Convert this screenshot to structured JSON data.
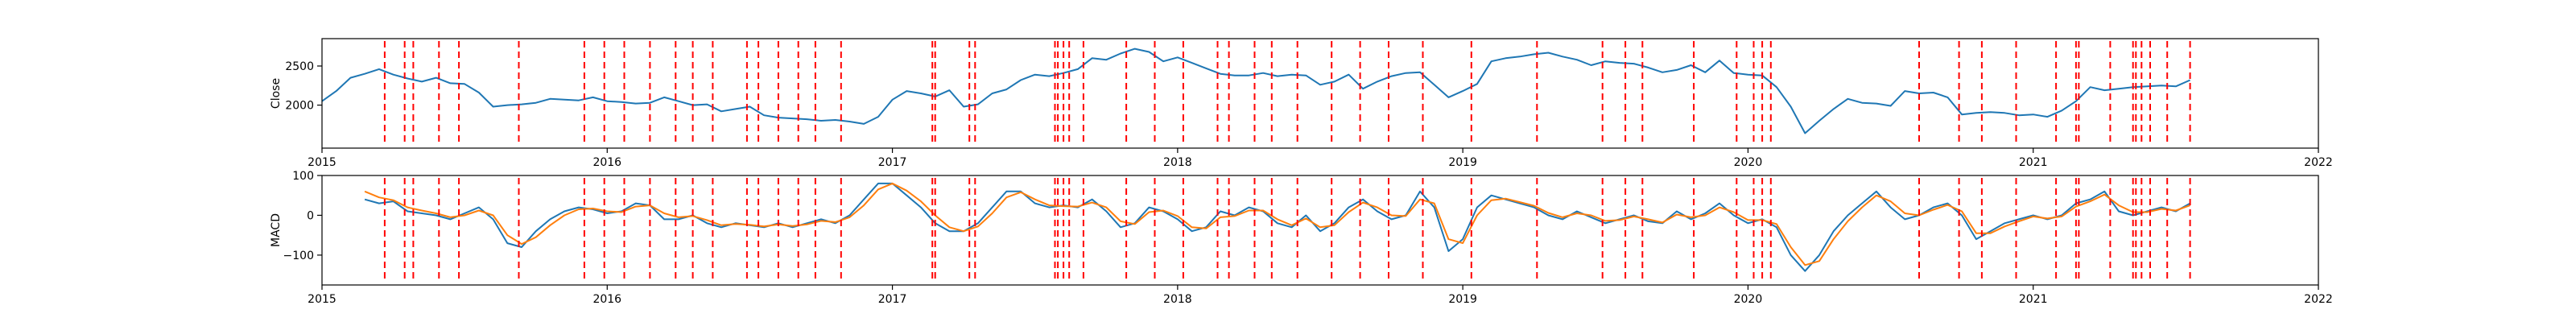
{
  "chart_data": [
    {
      "type": "line",
      "panel": "close",
      "title": "",
      "xlabel": "",
      "ylabel": "Close",
      "xlim": [
        2015.0,
        2022.0
      ],
      "ylim": [
        1450,
        2850
      ],
      "x_ticks": [
        2015,
        2016,
        2017,
        2018,
        2019,
        2020,
        2021,
        2022
      ],
      "x_tick_labels": [
        "2015",
        "2016",
        "2017",
        "2018",
        "2019",
        "2020",
        "2021",
        "2022"
      ],
      "y_ticks": [
        2000,
        2500
      ],
      "y_tick_labels": [
        "2000",
        "2500"
      ],
      "grid": false,
      "series": [
        {
          "color": "#1f77b4",
          "x": [
            2015.0,
            2015.05,
            2015.1,
            2015.15,
            2015.2,
            2015.25,
            2015.3,
            2015.35,
            2015.4,
            2015.45,
            2015.5,
            2015.55,
            2015.6,
            2015.65,
            2015.7,
            2015.75,
            2015.8,
            2015.85,
            2015.9,
            2015.95,
            2016.0,
            2016.05,
            2016.1,
            2016.15,
            2016.2,
            2016.25,
            2016.3,
            2016.35,
            2016.4,
            2016.45,
            2016.5,
            2016.55,
            2016.6,
            2016.65,
            2016.7,
            2016.75,
            2016.8,
            2016.85,
            2016.9,
            2016.95,
            2017.0,
            2017.05,
            2017.1,
            2017.15,
            2017.2,
            2017.25,
            2017.3,
            2017.35,
            2017.4,
            2017.45,
            2017.5,
            2017.55,
            2017.6,
            2017.65,
            2017.7,
            2017.75,
            2017.8,
            2017.85,
            2017.9,
            2017.95,
            2018.0,
            2018.05,
            2018.1,
            2018.15,
            2018.2,
            2018.25,
            2018.3,
            2018.35,
            2018.4,
            2018.45,
            2018.5,
            2018.55,
            2018.6,
            2018.65,
            2018.7,
            2018.75,
            2018.8,
            2018.85,
            2018.9,
            2018.95,
            2019.0,
            2019.05,
            2019.1,
            2019.15,
            2019.2,
            2019.25,
            2019.3,
            2019.35,
            2019.4,
            2019.45,
            2019.5,
            2019.55,
            2019.6,
            2019.65,
            2019.7,
            2019.75,
            2019.8,
            2019.85,
            2019.9,
            2019.95,
            2020.0,
            2020.05,
            2020.1,
            2020.15,
            2020.2,
            2020.25,
            2020.3,
            2020.35,
            2020.4,
            2020.45,
            2020.5,
            2020.55,
            2020.6,
            2020.65,
            2020.7,
            2020.75,
            2020.8,
            2020.85,
            2020.9,
            2020.95,
            2021.0,
            2021.05,
            2021.1,
            2021.15,
            2021.2,
            2021.25,
            2021.3,
            2021.35,
            2021.4,
            2021.45,
            2021.5,
            2021.55
          ],
          "y": [
            2050,
            2180,
            2350,
            2400,
            2460,
            2390,
            2340,
            2300,
            2350,
            2280,
            2270,
            2160,
            1980,
            2000,
            2010,
            2030,
            2080,
            2070,
            2060,
            2100,
            2050,
            2040,
            2020,
            2030,
            2100,
            2050,
            2000,
            2010,
            1920,
            1950,
            1980,
            1870,
            1840,
            1830,
            1820,
            1800,
            1810,
            1790,
            1760,
            1850,
            2070,
            2180,
            2150,
            2110,
            2190,
            1980,
            2010,
            2150,
            2200,
            2320,
            2390,
            2370,
            2410,
            2460,
            2600,
            2580,
            2660,
            2720,
            2680,
            2560,
            2610,
            2540,
            2470,
            2400,
            2380,
            2380,
            2410,
            2370,
            2390,
            2380,
            2260,
            2300,
            2390,
            2210,
            2300,
            2370,
            2410,
            2420,
            2260,
            2100,
            2180,
            2270,
            2560,
            2600,
            2620,
            2650,
            2670,
            2620,
            2580,
            2510,
            2560,
            2540,
            2530,
            2480,
            2420,
            2450,
            2510,
            2420,
            2570,
            2410,
            2390,
            2380,
            2230,
            1980,
            1640,
            1800,
            1950,
            2080,
            2030,
            2020,
            1990,
            2180,
            2150,
            2160,
            2100,
            1880,
            1900,
            1910,
            1900,
            1870,
            1880,
            1850,
            1930,
            2050,
            2230,
            2190,
            2210,
            2230,
            2240,
            2250,
            2240,
            2320
          ]
        }
      ],
      "vlines_x": [
        2015.22,
        2015.29,
        2015.32,
        2015.41,
        2015.48,
        2015.69,
        2015.92,
        2015.99,
        2016.06,
        2016.15,
        2016.24,
        2016.3,
        2016.37,
        2016.49,
        2016.53,
        2016.6,
        2016.67,
        2016.73,
        2016.82,
        2017.14,
        2017.15,
        2017.27,
        2017.29,
        2017.57,
        2017.58,
        2017.6,
        2017.62,
        2017.67,
        2017.82,
        2017.92,
        2018.02,
        2018.14,
        2018.18,
        2018.27,
        2018.33,
        2018.42,
        2018.54,
        2018.64,
        2018.74,
        2018.86,
        2019.03,
        2019.26,
        2019.49,
        2019.57,
        2019.63,
        2019.81,
        2019.96,
        2020.02,
        2020.05,
        2020.08,
        2020.6,
        2020.74,
        2020.82,
        2020.94,
        2021.08,
        2021.15,
        2021.16,
        2021.27,
        2021.35,
        2021.36,
        2021.38,
        2021.41,
        2021.47,
        2021.55
      ],
      "vline_color": "#ff0000"
    },
    {
      "type": "line",
      "panel": "macd",
      "title": "",
      "xlabel": "",
      "ylabel": "MACD",
      "xlim": [
        2015.0,
        2022.0
      ],
      "ylim": [
        -175,
        100
      ],
      "x_ticks": [
        2015,
        2016,
        2017,
        2018,
        2019,
        2020,
        2021,
        2022
      ],
      "x_tick_labels": [
        "2015",
        "2016",
        "2017",
        "2018",
        "2019",
        "2020",
        "2021",
        "2022"
      ],
      "y_ticks": [
        -100,
        0,
        100
      ],
      "y_tick_labels": [
        "−100",
        "0",
        "100"
      ],
      "grid": false,
      "series": [
        {
          "color": "#1f77b4",
          "x": [
            2015.15,
            2015.2,
            2015.25,
            2015.3,
            2015.35,
            2015.4,
            2015.45,
            2015.5,
            2015.55,
            2015.6,
            2015.65,
            2015.7,
            2015.75,
            2015.8,
            2015.85,
            2015.9,
            2015.95,
            2016.0,
            2016.05,
            2016.1,
            2016.15,
            2016.2,
            2016.25,
            2016.3,
            2016.35,
            2016.4,
            2016.45,
            2016.5,
            2016.55,
            2016.6,
            2016.65,
            2016.7,
            2016.75,
            2016.8,
            2016.85,
            2016.9,
            2016.95,
            2017.0,
            2017.05,
            2017.1,
            2017.15,
            2017.2,
            2017.25,
            2017.3,
            2017.35,
            2017.4,
            2017.45,
            2017.5,
            2017.55,
            2017.6,
            2017.65,
            2017.7,
            2017.75,
            2017.8,
            2017.85,
            2017.9,
            2017.95,
            2018.0,
            2018.05,
            2018.1,
            2018.15,
            2018.2,
            2018.25,
            2018.3,
            2018.35,
            2018.4,
            2018.45,
            2018.5,
            2018.55,
            2018.6,
            2018.65,
            2018.7,
            2018.75,
            2018.8,
            2018.85,
            2018.9,
            2018.95,
            2019.0,
            2019.05,
            2019.1,
            2019.15,
            2019.2,
            2019.25,
            2019.3,
            2019.35,
            2019.4,
            2019.45,
            2019.5,
            2019.55,
            2019.6,
            2019.65,
            2019.7,
            2019.75,
            2019.8,
            2019.85,
            2019.9,
            2019.95,
            2020.0,
            2020.05,
            2020.1,
            2020.15,
            2020.2,
            2020.25,
            2020.3,
            2020.35,
            2020.4,
            2020.45,
            2020.5,
            2020.55,
            2020.6,
            2020.65,
            2020.7,
            2020.75,
            2020.8,
            2020.85,
            2020.9,
            2020.95,
            2021.0,
            2021.05,
            2021.1,
            2021.15,
            2021.2,
            2021.25,
            2021.3,
            2021.35,
            2021.4,
            2021.45,
            2021.5,
            2021.55
          ],
          "y": [
            40,
            30,
            35,
            10,
            5,
            0,
            -10,
            5,
            20,
            -10,
            -70,
            -80,
            -40,
            -10,
            10,
            20,
            15,
            5,
            10,
            30,
            25,
            -10,
            -10,
            0,
            -20,
            -30,
            -20,
            -25,
            -30,
            -20,
            -30,
            -20,
            -10,
            -20,
            0,
            40,
            80,
            80,
            50,
            20,
            -20,
            -40,
            -40,
            -20,
            20,
            60,
            60,
            30,
            20,
            25,
            20,
            40,
            10,
            -30,
            -20,
            20,
            10,
            -10,
            -40,
            -30,
            10,
            0,
            20,
            10,
            -20,
            -30,
            0,
            -40,
            -20,
            20,
            40,
            10,
            -10,
            0,
            60,
            20,
            -90,
            -60,
            20,
            50,
            40,
            30,
            20,
            0,
            -10,
            10,
            -5,
            -20,
            -10,
            0,
            -15,
            -20,
            10,
            -10,
            5,
            30,
            0,
            -20,
            -10,
            -30,
            -100,
            -140,
            -100,
            -40,
            0,
            30,
            60,
            20,
            -10,
            0,
            20,
            30,
            0,
            -60,
            -40,
            -20,
            -10,
            0,
            -10,
            0,
            30,
            40,
            60,
            10,
            0,
            10,
            20,
            10,
            30
          ]
        },
        {
          "color": "#ff7f0e",
          "x": [
            2015.15,
            2015.2,
            2015.25,
            2015.3,
            2015.35,
            2015.4,
            2015.45,
            2015.5,
            2015.55,
            2015.6,
            2015.65,
            2015.7,
            2015.75,
            2015.8,
            2015.85,
            2015.9,
            2015.95,
            2016.0,
            2016.05,
            2016.1,
            2016.15,
            2016.2,
            2016.25,
            2016.3,
            2016.35,
            2016.4,
            2016.45,
            2016.5,
            2016.55,
            2016.6,
            2016.65,
            2016.7,
            2016.75,
            2016.8,
            2016.85,
            2016.9,
            2016.95,
            2017.0,
            2017.05,
            2017.1,
            2017.15,
            2017.2,
            2017.25,
            2017.3,
            2017.35,
            2017.4,
            2017.45,
            2017.5,
            2017.55,
            2017.6,
            2017.65,
            2017.7,
            2017.75,
            2017.8,
            2017.85,
            2017.9,
            2017.95,
            2018.0,
            2018.05,
            2018.1,
            2018.15,
            2018.2,
            2018.25,
            2018.3,
            2018.35,
            2018.4,
            2018.45,
            2018.5,
            2018.55,
            2018.6,
            2018.65,
            2018.7,
            2018.75,
            2018.8,
            2018.85,
            2018.9,
            2018.95,
            2019.0,
            2019.05,
            2019.1,
            2019.15,
            2019.2,
            2019.25,
            2019.3,
            2019.35,
            2019.4,
            2019.45,
            2019.5,
            2019.55,
            2019.6,
            2019.65,
            2019.7,
            2019.75,
            2019.8,
            2019.85,
            2019.9,
            2019.95,
            2020.0,
            2020.05,
            2020.1,
            2020.15,
            2020.2,
            2020.25,
            2020.3,
            2020.35,
            2020.4,
            2020.45,
            2020.5,
            2020.55,
            2020.6,
            2020.65,
            2020.7,
            2020.75,
            2020.8,
            2020.85,
            2020.9,
            2020.95,
            2021.0,
            2021.05,
            2021.1,
            2021.15,
            2021.2,
            2021.25,
            2021.3,
            2021.35,
            2021.4,
            2021.45,
            2021.5,
            2021.55
          ],
          "y": [
            60,
            45,
            38,
            20,
            12,
            5,
            -5,
            0,
            12,
            0,
            -50,
            -72,
            -55,
            -25,
            0,
            15,
            17,
            10,
            8,
            22,
            25,
            5,
            -5,
            -2,
            -12,
            -25,
            -22,
            -24,
            -28,
            -23,
            -27,
            -23,
            -14,
            -17,
            -5,
            25,
            65,
            80,
            62,
            35,
            0,
            -30,
            -40,
            -28,
            5,
            45,
            58,
            40,
            25,
            23,
            22,
            32,
            20,
            -15,
            -22,
            8,
            12,
            -2,
            -30,
            -33,
            -5,
            -2,
            12,
            12,
            -10,
            -25,
            -8,
            -30,
            -25,
            8,
            32,
            20,
            0,
            -2,
            40,
            30,
            -60,
            -70,
            0,
            38,
            42,
            33,
            24,
            6,
            -5,
            5,
            0,
            -14,
            -12,
            -3,
            -10,
            -18,
            2,
            -5,
            0,
            20,
            8,
            -12,
            -12,
            -22,
            -80,
            -125,
            -115,
            -60,
            -15,
            20,
            50,
            35,
            5,
            0,
            14,
            26,
            10,
            -45,
            -45,
            -28,
            -15,
            -3,
            -8,
            -3,
            22,
            35,
            52,
            25,
            8,
            8,
            16,
            12,
            25
          ]
        }
      ],
      "vlines_x": [
        2015.22,
        2015.29,
        2015.32,
        2015.41,
        2015.48,
        2015.69,
        2015.92,
        2015.99,
        2016.06,
        2016.15,
        2016.24,
        2016.3,
        2016.37,
        2016.49,
        2016.53,
        2016.6,
        2016.67,
        2016.73,
        2016.82,
        2017.14,
        2017.15,
        2017.27,
        2017.29,
        2017.57,
        2017.58,
        2017.6,
        2017.62,
        2017.67,
        2017.82,
        2017.92,
        2018.02,
        2018.14,
        2018.18,
        2018.27,
        2018.33,
        2018.42,
        2018.54,
        2018.64,
        2018.74,
        2018.86,
        2019.03,
        2019.26,
        2019.49,
        2019.57,
        2019.63,
        2019.81,
        2019.96,
        2020.02,
        2020.05,
        2020.08,
        2020.6,
        2020.74,
        2020.82,
        2020.94,
        2021.08,
        2021.15,
        2021.16,
        2021.27,
        2021.35,
        2021.36,
        2021.38,
        2021.41,
        2021.47,
        2021.55
      ],
      "vline_color": "#ff0000"
    }
  ]
}
